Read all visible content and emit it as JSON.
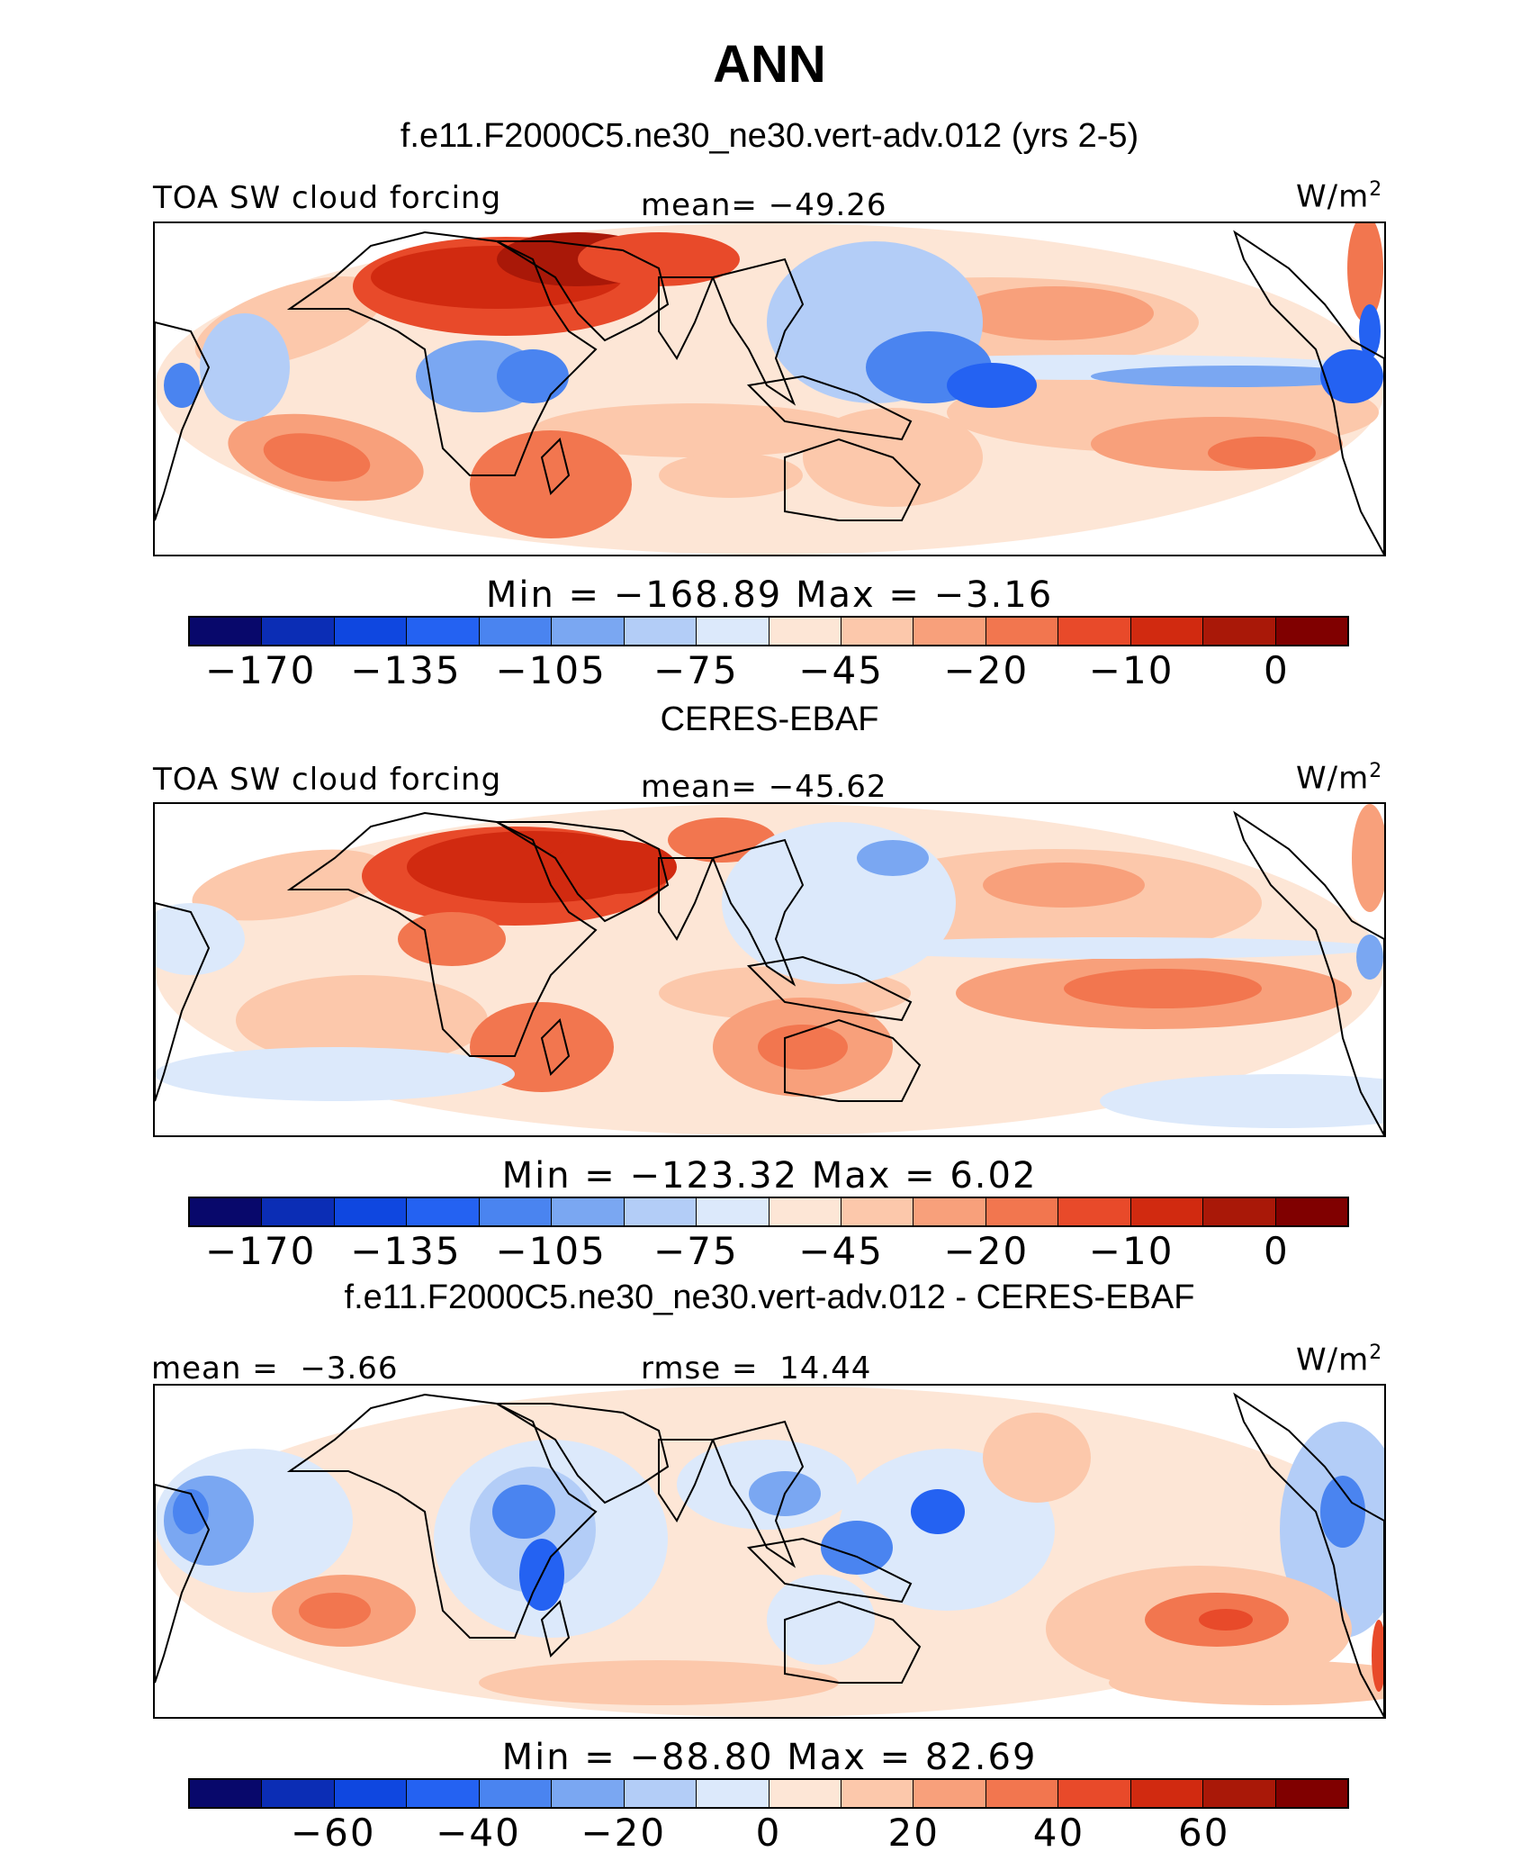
{
  "page": {
    "title": "ANN",
    "unit": "W/m",
    "unit_sup": "2"
  },
  "colors": {
    "levels_abs": [
      "#08086b",
      "#0b2db5",
      "#0f47e0",
      "#2462f2",
      "#4a84f0",
      "#7aa7f2",
      "#b3cdf7",
      "#dce9fb",
      "#fde6d6",
      "#fcc8ab",
      "#f8a07b",
      "#f2764f",
      "#e84a2a",
      "#d12a10",
      "#a91808",
      "#800000"
    ],
    "levels_diff": [
      "#08086b",
      "#0b2db5",
      "#0f47e0",
      "#2462f2",
      "#4a84f0",
      "#7aa7f2",
      "#b3cdf7",
      "#dce9fb",
      "#fde6d6",
      "#fcc8ab",
      "#f8a07b",
      "#f2764f",
      "#e84a2a",
      "#d12a10",
      "#a91808",
      "#800000"
    ],
    "coast": "#000000"
  },
  "chart_data": [
    {
      "type": "heatmap",
      "title": "f.e11.F2000C5.ne30_ne30.vert-adv.012 (yrs 2-5)",
      "variable": "TOA SW cloud forcing",
      "mean_label": "mean=",
      "mean_value": "−49.26",
      "minmax_text": "Min = −168.89 Max = −3.16",
      "min": -168.89,
      "max": -3.16,
      "colorbar_ticks": [
        "−170",
        "−135",
        "−105",
        "−75",
        "−45",
        "−20",
        "−10",
        "0"
      ]
    },
    {
      "type": "heatmap",
      "title": "CERES-EBAF",
      "variable": "TOA SW cloud forcing",
      "mean_label": "mean=",
      "mean_value": "−45.62",
      "minmax_text": "Min = −123.32 Max = 6.02",
      "min": -123.32,
      "max": 6.02,
      "colorbar_ticks": [
        "−170",
        "−135",
        "−105",
        "−75",
        "−45",
        "−20",
        "−10",
        "0"
      ]
    },
    {
      "type": "heatmap",
      "title": "f.e11.F2000C5.ne30_ne30.vert-adv.012 - CERES-EBAF",
      "mean_label": "mean =",
      "mean_value": "−3.66",
      "rmse_label": "rmse =",
      "rmse_value": "14.44",
      "minmax_text": "Min = −88.80 Max = 82.69",
      "min": -88.8,
      "max": 82.69,
      "colorbar_ticks": [
        "−60",
        "−40",
        "−20",
        "0",
        "20",
        "40",
        "60"
      ]
    }
  ]
}
